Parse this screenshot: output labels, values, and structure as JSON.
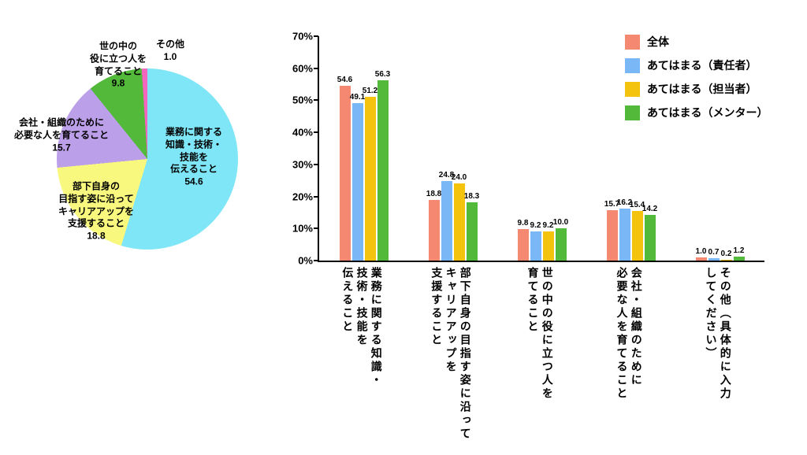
{
  "chart_data": [
    {
      "type": "pie",
      "start_angle_deg": 0,
      "direction": "clockwise",
      "slices": [
        {
          "label": "業務に関する\n知識・技術・\n技能を\n伝えること",
          "value": 54.6,
          "color": "#7fe6f7"
        },
        {
          "label": "部下自身の\n目指す姿に沿って\nキャリアアップを\n支援すること",
          "value": 18.8,
          "color": "#f8f87e"
        },
        {
          "label": "会社・組織のために\n必要な人を育てること",
          "value": 15.7,
          "color": "#bc9fe9"
        },
        {
          "label": "世の中の\n役に立つ人を\n育てること",
          "value": 9.8,
          "color": "#52b93b"
        },
        {
          "label": "その他",
          "value": 1.0,
          "color": "#f266be"
        }
      ]
    },
    {
      "type": "bar",
      "categories": [
        "業務に関する知識・\n技術・技能を\n伝えること",
        "部下自身の目指す姿に沿って\nキャリアアップを\n支援すること",
        "世の中の役に立つ人を\n育てること",
        "会社・組織のために\n必要な人を育てること",
        "その他（具体的に入力\nしてください）"
      ],
      "series": [
        {
          "name": "全体",
          "color": "#f48870",
          "values": [
            54.6,
            18.8,
            9.8,
            15.7,
            1.0
          ]
        },
        {
          "name": "あてはまる（責任者）",
          "color": "#79b7f7",
          "values": [
            49.1,
            24.8,
            9.2,
            16.2,
            0.7
          ]
        },
        {
          "name": "あてはまる（担当者）",
          "color": "#f3c30e",
          "values": [
            51.2,
            24.0,
            9.2,
            15.4,
            0.2
          ]
        },
        {
          "name": "あてはまる（メンター）",
          "color": "#52b93b",
          "values": [
            56.3,
            18.3,
            10.0,
            14.2,
            1.2
          ]
        }
      ],
      "ylim": [
        0,
        70
      ],
      "ytick_step": 10,
      "ytick_suffix": "%",
      "grid": false,
      "legend_position": "top-right"
    }
  ]
}
